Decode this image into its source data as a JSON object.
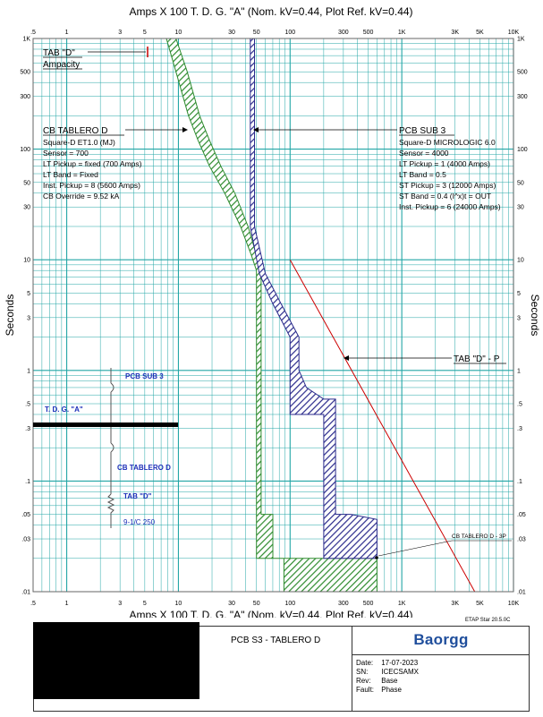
{
  "header": {
    "top_title": "Amps  X  100   T. D. G. \"A\" (Nom. kV=0.44, Plot Ref. kV=0.44)",
    "bottom_title": "Amps  X  100   T. D. G. \"A\" (Nom. kV=0.44, Plot Ref. kV=0.44)"
  },
  "axes": {
    "ylabel": "Seconds",
    "x_ticks": [
      ".5",
      "1",
      "3",
      "5",
      "10",
      "30",
      "50",
      "100",
      "300",
      "500",
      "1K",
      "3K",
      "5K",
      "10K"
    ],
    "y_ticks": [
      ".01",
      ".03",
      ".05",
      ".1",
      ".3",
      ".5",
      "1",
      "3",
      "5",
      "10",
      "30",
      "50",
      "100",
      "300",
      "500",
      "1K"
    ]
  },
  "chart_data": {
    "type": "line",
    "title": "Amps  X  100   T. D. G. \"A\" (Nom. kV=0.44, Plot Ref. kV=0.44)",
    "xlabel": "Amps  X  100",
    "ylabel": "Seconds",
    "x_scale": "log",
    "y_scale": "log",
    "xlim": [
      0.5,
      10000
    ],
    "ylim": [
      0.01,
      1000
    ],
    "grid": true,
    "series": [
      {
        "name": "CB TABLERO D",
        "color": "#2e8b2e",
        "band_left": [
          [
            7.8,
            1000
          ],
          [
            9.5,
            500
          ],
          [
            12.3,
            200
          ],
          [
            15,
            120
          ],
          [
            19,
            70
          ],
          [
            26,
            40
          ],
          [
            36,
            20
          ],
          [
            45,
            11
          ],
          [
            50,
            8
          ],
          [
            50,
            0.02
          ]
        ],
        "band_right": [
          [
            9.5,
            1000
          ],
          [
            12,
            500
          ],
          [
            15.5,
            200
          ],
          [
            19,
            120
          ],
          [
            24,
            70
          ],
          [
            32,
            40
          ],
          [
            42,
            20
          ],
          [
            50,
            11
          ],
          [
            55,
            8
          ],
          [
            55,
            0.05
          ],
          [
            70,
            0.05
          ],
          [
            70,
            0.02
          ],
          [
            88,
            0.02
          ],
          [
            88,
            0.01
          ],
          [
            600,
            0.01
          ],
          [
            600,
            0.02
          ],
          [
            88,
            0.02
          ]
        ]
      },
      {
        "name": "PCB SUB 3",
        "color": "#2b2b8c",
        "band_left": [
          [
            44,
            1000
          ],
          [
            44,
            20
          ],
          [
            53,
            7.5
          ],
          [
            70,
            4
          ],
          [
            100,
            2
          ],
          [
            100,
            0.4
          ],
          [
            200,
            0.4
          ],
          [
            200,
            0.02
          ],
          [
            600,
            0.02
          ]
        ],
        "band_right": [
          [
            48,
            1000
          ],
          [
            48,
            20
          ],
          [
            60,
            7.5
          ],
          [
            83,
            4
          ],
          [
            120,
            2
          ],
          [
            120,
            1
          ],
          [
            140,
            0.7
          ],
          [
            200,
            0.55
          ],
          [
            255,
            0.55
          ],
          [
            255,
            0.05
          ],
          [
            350,
            0.05
          ],
          [
            600,
            0.045
          ],
          [
            600,
            0.02
          ]
        ]
      },
      {
        "name": "TAB \"D\" - P",
        "color": "#cc0000",
        "points": [
          [
            100,
            10
          ],
          [
            4500,
            0.01
          ]
        ]
      },
      {
        "name": "TAB \"D\" Ampacity",
        "color": "#cc0000",
        "points": [
          [
            6.7,
            700
          ]
        ]
      }
    ],
    "annotations": [
      "TAB \"D\"",
      "Ampacity",
      "CB TABLERO D",
      "PCB SUB 3",
      "TAB \"D\" - P",
      "CB TABLERO D - 3P"
    ]
  },
  "labels": {
    "tab_d": "TAB \"D\"",
    "ampacity": "Ampacity",
    "cb_title": "CB TABLERO D",
    "cb_lines": [
      "Square-D  ET1.0 (MJ)",
      "Sensor = 700",
      "LT Pickup = fixed (700 Amps)",
      "LT Band = Fixed",
      "Inst. Pickup = 8 (5600 Amps)",
      "CB Override = 9.52 kA"
    ],
    "pcb_title": "PCB SUB 3",
    "pcb_lines": [
      "Square-D  MICROLOGIC 6.0",
      "Sensor = 4000",
      "LT Pickup = 1 (4000 Amps)",
      "LT Band = 0.5",
      "ST Pickup = 3 (12000 Amps)",
      "ST Band = 0.4  (I^x)t = OUT",
      "Inst. Pickup = 6 (24000 Amps)"
    ],
    "tab_dp": "TAB \"D\" - P",
    "cb_3p": "CB TABLERO D - 3P"
  },
  "oneline": {
    "pcb_sub3": "PCB SUB 3",
    "bus": "T. D. G. \"A\"",
    "cb_tablero": "CB TABLERO D",
    "tab_d": "TAB \"D\"",
    "cable": "9-1/C 250"
  },
  "footer": {
    "etap": "ETAP Star 20.5.0C",
    "study": "PCB S3 - TABLERO D",
    "logo": "Baorgg",
    "date_label": "Date:",
    "date": "17-07-2023",
    "sn_label": "SN:",
    "sn": "ICECSAMX",
    "rev_label": "Rev:",
    "rev": "Base",
    "fault_label": "Fault:",
    "fault": "Phase"
  },
  "colors": {
    "grid": "#22a6a6",
    "green": "#2e8b2e",
    "blue": "#2b2b8c",
    "red": "#cc0000",
    "oneline_text": "#1c2fb8"
  }
}
